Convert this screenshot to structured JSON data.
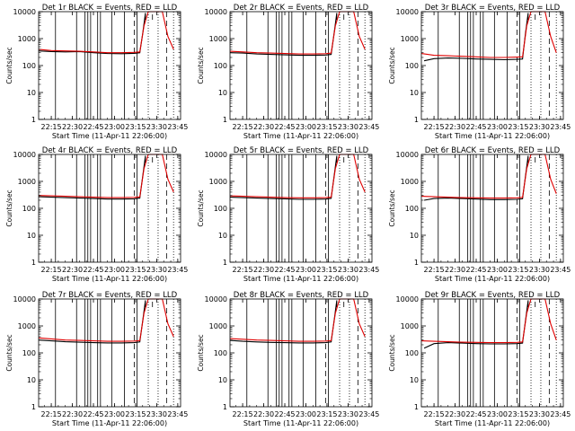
{
  "chart_data": [
    {
      "type": "line",
      "title": "Det 1r BLACK = Events, RED = LLD",
      "xlabel": "Start Time (11-Apr-11 22:06:00)",
      "ylabel": "Counts/sec",
      "yscale": "log",
      "ylim": [
        1,
        10000
      ],
      "xtick_labels": [
        "22:15",
        "22:30",
        "22:45",
        "23:00",
        "23:15",
        "23:30",
        "23:45"
      ],
      "ytick_labels": [
        "1",
        "10",
        "100",
        "1000",
        "10000"
      ],
      "series": [
        {
          "color": "#000000",
          "x": [
            "22:06",
            "22:15",
            "22:25",
            "22:35",
            "22:45",
            "22:55",
            "23:05",
            "23:14",
            "23:18",
            "23:20",
            "23:22"
          ],
          "y": [
            350,
            330,
            320,
            330,
            300,
            280,
            275,
            285,
            300,
            1500,
            9000
          ]
        },
        {
          "color": "#e00000",
          "x": [
            "22:06",
            "22:15",
            "22:25",
            "22:35",
            "22:45",
            "22:55",
            "23:05",
            "23:14",
            "23:18",
            "23:21",
            "23:24",
            "23:34",
            "23:38",
            "23:42"
          ],
          "y": [
            400,
            360,
            350,
            340,
            320,
            300,
            300,
            310,
            320,
            3000,
            10000,
            10000,
            1200,
            400
          ]
        }
      ]
    },
    {
      "type": "line",
      "title": "Det 2r BLACK = Events, RED = LLD",
      "xlabel": "Start Time (11-Apr-11 22:06:00)",
      "ylabel": "Counts/sec",
      "yscale": "log",
      "ylim": [
        1,
        10000
      ],
      "xtick_labels": [
        "22:15",
        "22:30",
        "22:45",
        "23:00",
        "23:15",
        "23:30",
        "23:45"
      ],
      "ytick_labels": [
        "1",
        "10",
        "100",
        "1000",
        "10000"
      ],
      "series": [
        {
          "color": "#000000",
          "x": [
            "22:06",
            "22:15",
            "22:25",
            "22:35",
            "22:45",
            "22:55",
            "23:05",
            "23:14",
            "23:18",
            "23:20",
            "23:22"
          ],
          "y": [
            300,
            290,
            270,
            260,
            250,
            240,
            240,
            245,
            260,
            1500,
            9000
          ]
        },
        {
          "color": "#e00000",
          "x": [
            "22:06",
            "22:15",
            "22:25",
            "22:35",
            "22:45",
            "22:55",
            "23:05",
            "23:14",
            "23:18",
            "23:21",
            "23:24",
            "23:34",
            "23:38",
            "23:42"
          ],
          "y": [
            340,
            320,
            300,
            290,
            280,
            270,
            270,
            275,
            290,
            3000,
            10000,
            10000,
            1200,
            400
          ]
        }
      ]
    },
    {
      "type": "line",
      "title": "Det 3r BLACK = Events, RED = LLD",
      "xlabel": "Start Time (11-Apr-11 22:06:00)",
      "ylabel": "Counts/sec",
      "yscale": "log",
      "ylim": [
        1,
        10000
      ],
      "xtick_labels": [
        "22:15",
        "22:30",
        "22:45",
        "23:00",
        "23:15",
        "23:30",
        "23:45"
      ],
      "ytick_labels": [
        "1",
        "10",
        "100",
        "1000",
        "10000"
      ],
      "series": [
        {
          "color": "#000000",
          "x": [
            "22:08",
            "22:15",
            "22:25",
            "22:35",
            "22:45",
            "22:55",
            "23:05",
            "23:14",
            "23:18",
            "23:20",
            "23:22"
          ],
          "y": [
            150,
            180,
            190,
            185,
            175,
            170,
            165,
            170,
            175,
            1500,
            9000
          ]
        },
        {
          "color": "#e00000",
          "x": [
            "22:06",
            "22:15",
            "22:25",
            "22:35",
            "22:45",
            "22:55",
            "23:05",
            "23:14",
            "23:18",
            "23:21",
            "23:24",
            "23:34",
            "23:38",
            "23:42"
          ],
          "y": [
            280,
            240,
            230,
            220,
            210,
            200,
            200,
            205,
            210,
            3000,
            10000,
            10000,
            1200,
            300
          ]
        }
      ]
    },
    {
      "type": "line",
      "title": "Det 4r BLACK = Events, RED = LLD",
      "xlabel": "Start Time (11-Apr-11 22:06:00)",
      "ylabel": "Counts/sec",
      "yscale": "log",
      "ylim": [
        1,
        10000
      ],
      "xtick_labels": [
        "22:15",
        "22:30",
        "22:45",
        "23:00",
        "23:15",
        "23:30",
        "23:45"
      ],
      "ytick_labels": [
        "1",
        "10",
        "100",
        "1000",
        "10000"
      ],
      "series": [
        {
          "color": "#000000",
          "x": [
            "22:06",
            "22:15",
            "22:25",
            "22:35",
            "22:45",
            "22:55",
            "23:05",
            "23:14",
            "23:18",
            "23:20",
            "23:22"
          ],
          "y": [
            270,
            260,
            250,
            240,
            230,
            220,
            220,
            225,
            240,
            1500,
            9000
          ]
        },
        {
          "color": "#e00000",
          "x": [
            "22:06",
            "22:15",
            "22:25",
            "22:35",
            "22:45",
            "22:55",
            "23:05",
            "23:14",
            "23:18",
            "23:21",
            "23:24",
            "23:34",
            "23:38",
            "23:42"
          ],
          "y": [
            300,
            290,
            280,
            270,
            260,
            250,
            250,
            255,
            265,
            3000,
            10000,
            10000,
            1200,
            400
          ]
        }
      ]
    },
    {
      "type": "line",
      "title": "Det 5r BLACK = Events, RED = LLD",
      "xlabel": "Start Time (11-Apr-11 22:06:00)",
      "ylabel": "Counts/sec",
      "yscale": "log",
      "ylim": [
        1,
        10000
      ],
      "xtick_labels": [
        "22:15",
        "22:30",
        "22:45",
        "23:00",
        "23:15",
        "23:30",
        "23:45"
      ],
      "ytick_labels": [
        "1",
        "10",
        "100",
        "1000",
        "10000"
      ],
      "series": [
        {
          "color": "#000000",
          "x": [
            "22:06",
            "22:15",
            "22:25",
            "22:35",
            "22:45",
            "22:55",
            "23:05",
            "23:14",
            "23:18",
            "23:20",
            "23:22"
          ],
          "y": [
            260,
            250,
            240,
            230,
            225,
            215,
            215,
            220,
            235,
            1500,
            9000
          ]
        },
        {
          "color": "#e00000",
          "x": [
            "22:06",
            "22:15",
            "22:25",
            "22:35",
            "22:45",
            "22:55",
            "23:05",
            "23:14",
            "23:18",
            "23:21",
            "23:24",
            "23:34",
            "23:38",
            "23:42"
          ],
          "y": [
            290,
            280,
            270,
            260,
            250,
            245,
            245,
            250,
            260,
            3000,
            10000,
            10000,
            1200,
            400
          ]
        }
      ]
    },
    {
      "type": "line",
      "title": "Det 6r BLACK = Events, RED = LLD",
      "xlabel": "Start Time (11-Apr-11 22:06:00)",
      "ylabel": "Counts/sec",
      "yscale": "log",
      "ylim": [
        1,
        10000
      ],
      "xtick_labels": [
        "22:15",
        "22:30",
        "22:45",
        "23:00",
        "23:15",
        "23:30",
        "23:45"
      ],
      "ytick_labels": [
        "1",
        "10",
        "100",
        "1000",
        "10000"
      ],
      "series": [
        {
          "color": "#000000",
          "x": [
            "22:08",
            "22:15",
            "22:25",
            "22:35",
            "22:45",
            "22:55",
            "23:05",
            "23:14",
            "23:18",
            "23:20",
            "23:22"
          ],
          "y": [
            200,
            230,
            240,
            230,
            220,
            210,
            210,
            215,
            225,
            1500,
            9000
          ]
        },
        {
          "color": "#e00000",
          "x": [
            "22:06",
            "22:15",
            "22:25",
            "22:35",
            "22:45",
            "22:55",
            "23:05",
            "23:14",
            "23:18",
            "23:21",
            "23:24",
            "23:34",
            "23:38",
            "23:42"
          ],
          "y": [
            280,
            270,
            260,
            250,
            245,
            240,
            240,
            245,
            255,
            3000,
            10000,
            10000,
            1200,
            350
          ]
        }
      ]
    },
    {
      "type": "line",
      "title": "Det 7r BLACK = Events, RED = LLD",
      "xlabel": "Start Time (11-Apr-11 22:06:00)",
      "ylabel": "Counts/sec",
      "yscale": "log",
      "ylim": [
        1,
        10000
      ],
      "xtick_labels": [
        "22:15",
        "22:30",
        "22:45",
        "23:00",
        "23:15",
        "23:30",
        "23:45"
      ],
      "ytick_labels": [
        "1",
        "10",
        "100",
        "1000",
        "10000"
      ],
      "series": [
        {
          "color": "#000000",
          "x": [
            "22:06",
            "22:15",
            "22:25",
            "22:35",
            "22:45",
            "22:55",
            "23:05",
            "23:14",
            "23:18",
            "23:20",
            "23:22"
          ],
          "y": [
            300,
            280,
            260,
            250,
            240,
            235,
            235,
            240,
            255,
            1500,
            9000
          ]
        },
        {
          "color": "#e00000",
          "x": [
            "22:06",
            "22:15",
            "22:25",
            "22:35",
            "22:45",
            "22:55",
            "23:05",
            "23:14",
            "23:18",
            "23:21",
            "23:24",
            "23:34",
            "23:38",
            "23:42"
          ],
          "y": [
            360,
            330,
            300,
            290,
            280,
            270,
            270,
            275,
            285,
            3000,
            10000,
            10000,
            1200,
            400
          ]
        }
      ]
    },
    {
      "type": "line",
      "title": "Det 8r BLACK = Events, RED = LLD",
      "xlabel": "Start Time (11-Apr-11 22:06:00)",
      "ylabel": "Counts/sec",
      "yscale": "log",
      "ylim": [
        1,
        10000
      ],
      "xtick_labels": [
        "22:15",
        "22:30",
        "22:45",
        "23:00",
        "23:15",
        "23:30",
        "23:45"
      ],
      "ytick_labels": [
        "1",
        "10",
        "100",
        "1000",
        "10000"
      ],
      "series": [
        {
          "color": "#000000",
          "x": [
            "22:06",
            "22:15",
            "22:25",
            "22:35",
            "22:45",
            "22:55",
            "23:05",
            "23:14",
            "23:18",
            "23:20",
            "23:22"
          ],
          "y": [
            290,
            270,
            255,
            245,
            240,
            235,
            235,
            240,
            255,
            1500,
            9000
          ]
        },
        {
          "color": "#e00000",
          "x": [
            "22:06",
            "22:15",
            "22:25",
            "22:35",
            "22:45",
            "22:55",
            "23:05",
            "23:14",
            "23:18",
            "23:21",
            "23:24",
            "23:34",
            "23:38",
            "23:42"
          ],
          "y": [
            340,
            320,
            300,
            290,
            280,
            270,
            270,
            275,
            285,
            3000,
            10000,
            10000,
            1200,
            400
          ]
        }
      ]
    },
    {
      "type": "line",
      "title": "Det 9r BLACK = Events, RED = LLD",
      "xlabel": "Start Time (11-Apr-11 22:06:00)",
      "ylabel": "Counts/sec",
      "yscale": "log",
      "ylim": [
        1,
        10000
      ],
      "xtick_labels": [
        "22:15",
        "22:30",
        "22:45",
        "23:00",
        "23:15",
        "23:30",
        "23:45"
      ],
      "ytick_labels": [
        "1",
        "10",
        "100",
        "1000",
        "10000"
      ],
      "series": [
        {
          "color": "#000000",
          "x": [
            "22:08",
            "22:15",
            "22:25",
            "22:35",
            "22:45",
            "22:55",
            "23:05",
            "23:14",
            "23:18",
            "23:20",
            "23:22"
          ],
          "y": [
            150,
            220,
            240,
            230,
            220,
            215,
            215,
            220,
            230,
            1500,
            9000
          ]
        },
        {
          "color": "#e00000",
          "x": [
            "22:06",
            "22:15",
            "22:25",
            "22:35",
            "22:45",
            "22:55",
            "23:05",
            "23:14",
            "23:18",
            "23:21",
            "23:24",
            "23:34",
            "23:38",
            "23:42"
          ],
          "y": [
            280,
            270,
            260,
            250,
            245,
            240,
            240,
            245,
            255,
            3000,
            10000,
            10000,
            1200,
            300
          ]
        }
      ]
    }
  ],
  "markers": {
    "solid_lines": [
      "22:18",
      "22:33",
      "22:39",
      "22:41",
      "22:43",
      "22:48",
      "22:50",
      "22:58",
      "23:07",
      "23:16"
    ],
    "dashed_lines": [
      "23:14",
      "23:37"
    ],
    "dotted_lines": [
      "23:24",
      "23:31",
      "23:42"
    ],
    "tick_marks": [
      "23:22",
      "23:27"
    ]
  },
  "colors": {
    "events": "#000000",
    "lld": "#e00000",
    "background": "#ffffff"
  }
}
